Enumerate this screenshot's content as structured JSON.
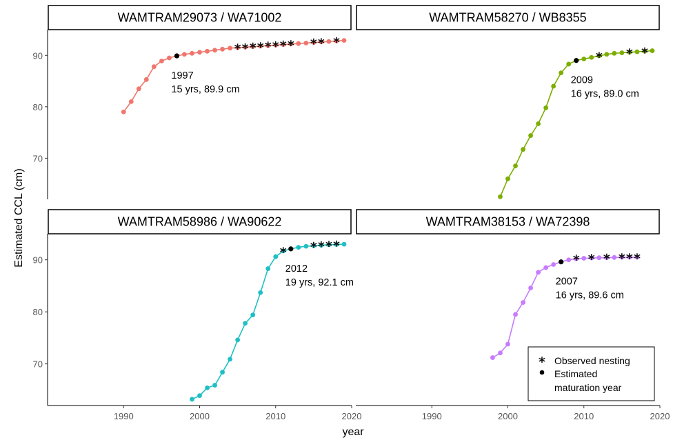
{
  "chart_data": {
    "type": "line",
    "ylabel": "Estimated CCL (cm)",
    "xlabel": "year",
    "xlim": [
      1980,
      2020
    ],
    "ylim": [
      62,
      95
    ],
    "x_ticks": [
      1990,
      2000,
      2010,
      2020
    ],
    "y_ticks": [
      70,
      80,
      90
    ],
    "legend": {
      "position": "bottom-right",
      "entries": [
        {
          "symbol": "*",
          "label_lines": [
            "Observed nesting"
          ]
        },
        {
          "symbol": "•",
          "label_lines": [
            "Estimated",
            "maturation year"
          ]
        }
      ]
    },
    "panels": [
      {
        "title": "WAMTRAM29073 / WA71002",
        "color": "#f0766d",
        "x": [
          1990,
          1991,
          1992,
          1993,
          1994,
          1995,
          1996,
          1997,
          1998,
          1999,
          2000,
          2001,
          2002,
          2003,
          2004,
          2005,
          2006,
          2007,
          2008,
          2009,
          2010,
          2011,
          2012,
          2013,
          2014,
          2015,
          2016,
          2017,
          2018,
          2019
        ],
        "y": [
          79.0,
          81.0,
          83.5,
          85.3,
          87.8,
          88.9,
          89.5,
          89.9,
          90.2,
          90.4,
          90.6,
          90.8,
          91.0,
          91.2,
          91.4,
          91.5,
          91.6,
          91.7,
          91.8,
          91.9,
          92.0,
          92.1,
          92.2,
          92.3,
          92.4,
          92.5,
          92.6,
          92.7,
          92.8,
          92.9
        ],
        "maturation": {
          "year": 1997,
          "value": 89.9
        },
        "nesting_years": [
          2005,
          2006,
          2007,
          2008,
          2009,
          2010,
          2011,
          2012,
          2015,
          2016,
          2018
        ],
        "annotation": [
          "1997",
          "15 yrs, 89.9 cm"
        ]
      },
      {
        "title": "WAMTRAM58270 / WB8355",
        "color": "#7cae00",
        "x": [
          1999,
          2000,
          2001,
          2002,
          2003,
          2004,
          2005,
          2006,
          2007,
          2008,
          2009,
          2010,
          2011,
          2012,
          2013,
          2014,
          2015,
          2016,
          2017,
          2018,
          2019
        ],
        "y": [
          62.5,
          66.0,
          68.5,
          71.7,
          74.4,
          76.7,
          79.8,
          84.0,
          86.6,
          88.3,
          89.0,
          89.3,
          89.6,
          89.9,
          90.2,
          90.4,
          90.5,
          90.6,
          90.7,
          90.8,
          90.9
        ],
        "maturation": {
          "year": 2009,
          "value": 89.0
        },
        "nesting_years": [
          2012,
          2016,
          2018
        ],
        "annotation": [
          "2009",
          "16 yrs, 89.0 cm"
        ]
      },
      {
        "title": "WAMTRAM58986 / WA90622",
        "color": "#1fbfc4",
        "x": [
          1999,
          2000,
          2001,
          2002,
          2003,
          2004,
          2005,
          2006,
          2007,
          2008,
          2009,
          2010,
          2011,
          2012,
          2013,
          2014,
          2015,
          2016,
          2017,
          2018,
          2019
        ],
        "y": [
          63.2,
          63.9,
          65.4,
          65.9,
          68.4,
          70.9,
          74.6,
          77.8,
          79.4,
          83.7,
          88.3,
          90.6,
          91.7,
          92.1,
          92.4,
          92.6,
          92.7,
          92.8,
          92.9,
          92.95,
          93.0
        ],
        "maturation": {
          "year": 2012,
          "value": 92.1
        },
        "nesting_years": [
          2011,
          2015,
          2016,
          2017,
          2018
        ],
        "annotation": [
          "2012",
          "19 yrs, 92.1 cm"
        ]
      },
      {
        "title": "WAMTRAM38153 / WA72398",
        "color": "#c77cff",
        "x": [
          1998,
          1999,
          2000,
          2001,
          2002,
          2003,
          2004,
          2005,
          2006,
          2007,
          2008,
          2009,
          2010,
          2011,
          2012,
          2013,
          2014,
          2015,
          2016,
          2017
        ],
        "y": [
          71.2,
          72.1,
          73.8,
          79.5,
          81.8,
          84.6,
          87.6,
          88.5,
          89.1,
          89.6,
          90.0,
          90.2,
          90.3,
          90.35,
          90.4,
          90.4,
          90.45,
          90.5,
          90.5,
          90.5
        ],
        "maturation": {
          "year": 2007,
          "value": 89.6
        },
        "nesting_years": [
          2009,
          2011,
          2013,
          2015,
          2016,
          2017
        ],
        "annotation": [
          "2007",
          "16 yrs, 89.6 cm"
        ]
      }
    ]
  }
}
